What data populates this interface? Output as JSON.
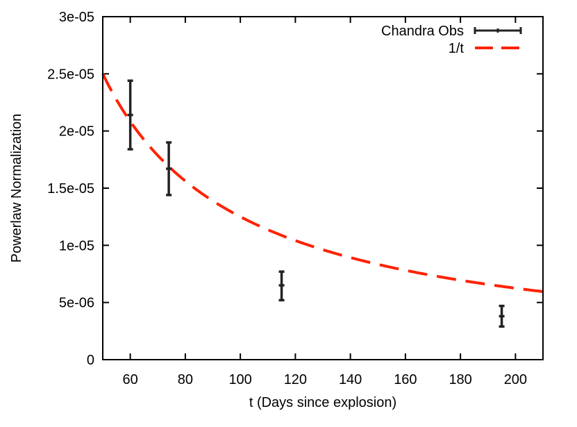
{
  "chart_data": {
    "type": "scatter",
    "title": "",
    "xlabel": "t (Days since explosion)",
    "ylabel": "Powerlaw Normalization",
    "xlim": [
      50,
      210
    ],
    "ylim": [
      0,
      3e-05
    ],
    "x_ticks": [
      60,
      80,
      100,
      120,
      140,
      160,
      180,
      200
    ],
    "x_tick_labels": [
      "60",
      "80",
      "100",
      "120",
      "140",
      "160",
      "180",
      "200"
    ],
    "y_ticks": [
      0,
      5e-06,
      1e-05,
      1.5e-05,
      2e-05,
      2.5e-05,
      3e-05
    ],
    "y_tick_labels": [
      "0",
      "5e-06",
      "1e-05",
      "1.5e-05",
      "2e-05",
      "2.5e-05",
      "3e-05"
    ],
    "grid": false,
    "legend_position": "top-right",
    "series": [
      {
        "name": "Chandra Obs",
        "kind": "errorbars",
        "color": "#222222",
        "points": [
          {
            "x": 60,
            "y": 2.14e-05,
            "ylow": 1.84e-05,
            "yhigh": 2.44e-05
          },
          {
            "x": 74,
            "y": 1.67e-05,
            "ylow": 1.44e-05,
            "yhigh": 1.9e-05
          },
          {
            "x": 115,
            "y": 6.5e-06,
            "ylow": 5.2e-06,
            "yhigh": 7.7e-06
          },
          {
            "x": 195,
            "y": 3.8e-06,
            "ylow": 2.9e-06,
            "yhigh": 4.7e-06
          }
        ]
      },
      {
        "name": "1/t",
        "kind": "dashed-line",
        "color": "#ff2200",
        "function": "1.25e-3 / t"
      }
    ]
  }
}
